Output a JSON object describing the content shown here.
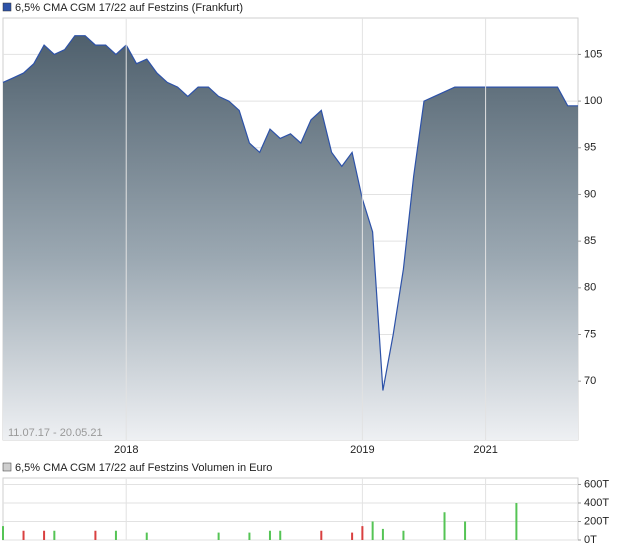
{
  "chart_data": [
    {
      "type": "area",
      "title": "6,5% CMA CGM 17/22 auf Festzins (Frankfurt)",
      "subtitle": "11.07.17 - 20.05.21",
      "categories": [
        null,
        null,
        null,
        null,
        null,
        null,
        null,
        null,
        null,
        null,
        null,
        null,
        "2018",
        null,
        null,
        null,
        null,
        null,
        null,
        null,
        null,
        null,
        null,
        null,
        null,
        null,
        null,
        null,
        null,
        null,
        null,
        null,
        null,
        null,
        null,
        "2019",
        null,
        null,
        null,
        null,
        null,
        null,
        null,
        null,
        null,
        null,
        null,
        "2021",
        null,
        null,
        null,
        null,
        null,
        null,
        null,
        null,
        null
      ],
      "values": [
        102,
        102.5,
        103,
        104,
        106,
        105,
        105.5,
        107,
        107,
        106,
        106,
        105,
        106,
        104,
        104.5,
        103,
        102,
        101.5,
        100.5,
        101.5,
        101.5,
        100.5,
        100,
        99,
        95.5,
        94.5,
        97,
        96,
        96.5,
        95.5,
        98,
        99,
        94.5,
        93,
        94.5,
        89.5,
        86,
        69,
        75,
        82,
        92,
        100,
        100.5,
        101,
        101.5,
        101.5,
        101.5,
        101.5,
        101.5,
        101.5,
        101.5,
        101.5,
        101.5,
        101.5,
        101.5,
        99.5,
        99.5
      ],
      "color": "#2d52a8",
      "ylim": [
        63.7,
        108.9
      ],
      "yticks": [
        70,
        75,
        80,
        85,
        90,
        95,
        100,
        105
      ],
      "grid": true
    },
    {
      "type": "bar",
      "title": "6,5% CMA CGM 17/22 auf Festzins Volumen in Euro",
      "values": [
        150,
        0,
        100,
        0,
        100,
        100,
        0,
        0,
        0,
        100,
        0,
        100,
        0,
        0,
        80,
        0,
        0,
        0,
        0,
        0,
        0,
        80,
        0,
        0,
        80,
        0,
        100,
        100,
        0,
        0,
        0,
        100,
        0,
        0,
        80,
        150,
        200,
        120,
        0,
        100,
        0,
        0,
        0,
        300,
        0,
        200,
        0,
        0,
        0,
        0,
        400,
        0,
        0,
        0,
        0,
        0,
        0
      ],
      "colors": [
        "#55c455",
        "#55c455",
        "#d94040",
        "#55c455",
        "#d94040",
        "#55c455",
        "#55c455",
        "#55c455",
        "#55c455",
        "#d94040",
        "#55c455",
        "#55c455",
        "#55c455",
        "#55c455",
        "#55c455",
        "#55c455",
        "#55c455",
        "#55c455",
        "#55c455",
        "#55c455",
        "#55c455",
        "#55c455",
        "#55c455",
        "#55c455",
        "#55c455",
        "#55c455",
        "#55c455",
        "#55c455",
        "#55c455",
        "#55c455",
        "#55c455",
        "#d94040",
        "#55c455",
        "#55c455",
        "#d94040",
        "#d94040",
        "#55c455",
        "#55c455",
        "#55c455",
        "#55c455",
        "#55c455",
        "#55c455",
        "#55c455",
        "#55c455",
        "#55c455",
        "#55c455",
        "#55c455",
        "#55c455",
        "#55c455",
        "#55c455",
        "#55c455",
        "#55c455",
        "#55c455",
        "#55c455",
        "#55c455",
        "#55c455",
        "#55c455"
      ],
      "ylim": [
        0,
        670
      ],
      "yticks": [
        {
          "value": 0,
          "label": "0T"
        },
        {
          "value": 200,
          "label": "200T"
        },
        {
          "value": 400,
          "label": "400T"
        },
        {
          "value": 600,
          "label": "600T"
        }
      ],
      "grid": true
    }
  ]
}
